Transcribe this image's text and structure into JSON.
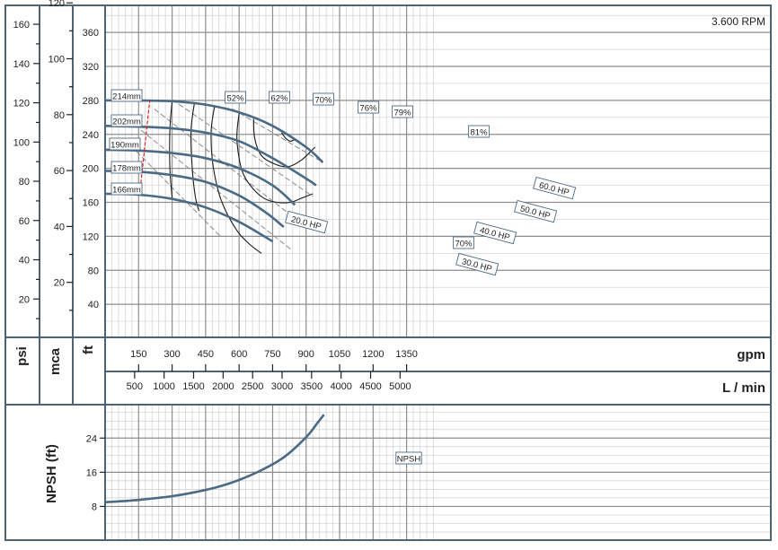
{
  "rpm_label": "3.600 RPM",
  "units": {
    "psi": "psi",
    "mca": "mca",
    "ft": "ft",
    "gpm": "gpm",
    "lmin": "L / min",
    "npsh_axis": "NPSH (ft)"
  },
  "chart_data": [
    {
      "type": "line",
      "xlabel": "gpm",
      "xlabel_secondary": "L / min",
      "ylabel": "ft",
      "ylabel_secondary": [
        "psi",
        "mca"
      ],
      "xlim": [
        0,
        1500
      ],
      "ylim": [
        0,
        400
      ],
      "grid": true,
      "annotation": "3.600 RPM",
      "x_ticks_gpm": [
        150,
        300,
        450,
        600,
        750,
        900,
        1050,
        1200,
        1350
      ],
      "x_ticks_lmin": [
        500,
        1000,
        1500,
        2000,
        2500,
        3000,
        3500,
        4000,
        4500,
        5000
      ],
      "y_ticks_ft": [
        40,
        80,
        120,
        160,
        200,
        240,
        280,
        320,
        360
      ],
      "y_ticks_psi": [
        20,
        40,
        60,
        80,
        100,
        120,
        140,
        160
      ],
      "y_ticks_mca": [
        20,
        40,
        60,
        80,
        100,
        120
      ],
      "impellers": [
        {
          "label": "214mm",
          "points": [
            [
              0,
              280
            ],
            [
              150,
              280
            ],
            [
              300,
              279
            ],
            [
              450,
              275
            ],
            [
              600,
              266
            ],
            [
              750,
              250
            ],
            [
              900,
              225
            ],
            [
              975,
              207
            ]
          ]
        },
        {
          "label": "202mm",
          "points": [
            [
              0,
              250
            ],
            [
              150,
              249
            ],
            [
              300,
              247
            ],
            [
              450,
              242
            ],
            [
              600,
              232
            ],
            [
              750,
              212
            ],
            [
              900,
              188
            ],
            [
              945,
              180
            ]
          ]
        },
        {
          "label": "190mm",
          "points": [
            [
              0,
              222
            ],
            [
              150,
              221
            ],
            [
              300,
              218
            ],
            [
              450,
              212
            ],
            [
              600,
              200
            ],
            [
              750,
              180
            ],
            [
              850,
              157
            ]
          ]
        },
        {
          "label": "178mm",
          "points": [
            [
              0,
              197
            ],
            [
              150,
              196
            ],
            [
              300,
              192
            ],
            [
              450,
              184
            ],
            [
              600,
              168
            ],
            [
              720,
              148
            ],
            [
              800,
              131
            ]
          ]
        },
        {
          "label": "166mm",
          "points": [
            [
              0,
              170
            ],
            [
              150,
              169
            ],
            [
              300,
              164
            ],
            [
              450,
              154
            ],
            [
              600,
              137
            ],
            [
              750,
              114
            ]
          ]
        }
      ],
      "efficiency_labels": [
        "52%",
        "62%",
        "70%",
        "76%",
        "79%",
        "81%",
        "70%"
      ],
      "efficiency_curves": [
        {
          "label": "52%",
          "points": [
            [
              300,
              280
            ],
            [
              290,
              245
            ],
            [
              290,
              200
            ],
            [
              300,
              165
            ]
          ]
        },
        {
          "label": "62%",
          "points": [
            [
              400,
              277
            ],
            [
              385,
              245
            ],
            [
              390,
              200
            ],
            [
              405,
              165
            ],
            [
              420,
              150
            ]
          ]
        },
        {
          "label": "70%",
          "points": [
            [
              490,
              273
            ],
            [
              475,
              245
            ],
            [
              480,
              210
            ],
            [
              505,
              175
            ],
            [
              540,
              150
            ],
            [
              595,
              125
            ],
            [
              650,
              110
            ],
            [
              700,
              100
            ]
          ]
        },
        {
          "label": "76%",
          "points": [
            [
              600,
              265
            ],
            [
              590,
              235
            ],
            [
              610,
              200
            ],
            [
              650,
              180
            ],
            [
              710,
              165
            ],
            [
              770,
              160
            ],
            [
              830,
              160
            ],
            [
              880,
              165
            ],
            [
              930,
              170
            ]
          ]
        },
        {
          "label": "79%",
          "points": [
            [
              665,
              258
            ],
            [
              670,
              235
            ],
            [
              700,
              215
            ],
            [
              760,
              205
            ],
            [
              820,
              202
            ],
            [
              880,
              210
            ],
            [
              940,
              225
            ]
          ]
        },
        {
          "label": "81%",
          "points": [
            [
              790,
              242
            ],
            [
              810,
              235
            ],
            [
              830,
              232
            ],
            [
              850,
              234
            ]
          ]
        }
      ],
      "power_lines": [
        {
          "label": "20.0 HP",
          "points": [
            [
              140,
              220
            ],
            [
              520,
              119
            ]
          ]
        },
        {
          "label": "30.0 HP",
          "points": [
            [
              160,
              245
            ],
            [
              840,
              103
            ]
          ]
        },
        {
          "label": "40.0 HP",
          "points": [
            [
              220,
              270
            ],
            [
              870,
              137
            ]
          ]
        },
        {
          "label": "50.0 HP",
          "points": [
            [
              300,
              281
            ],
            [
              930,
              167
            ]
          ]
        },
        {
          "label": "60.0 HP",
          "points": [
            [
              570,
              270
            ],
            [
              975,
              207
            ]
          ]
        }
      ],
      "min_diameter_line": [
        [
          155,
          170
        ],
        [
          200,
          280
        ]
      ]
    },
    {
      "type": "line",
      "ylabel": "NPSH (ft)",
      "ylim": [
        0,
        32
      ],
      "y_ticks": [
        8,
        16,
        24
      ],
      "series": [
        {
          "name": "NPSH",
          "x": [
            0,
            100,
            200,
            300,
            400,
            500,
            600,
            700,
            800,
            900,
            950,
            980
          ],
          "y": [
            9,
            9.3,
            9.8,
            10.4,
            11.3,
            12.5,
            14.2,
            16.5,
            19.5,
            24.2,
            27.5,
            29.5
          ]
        }
      ]
    }
  ]
}
